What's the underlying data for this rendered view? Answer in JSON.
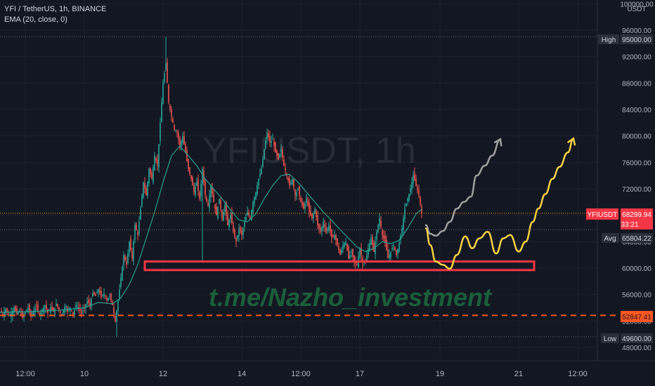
{
  "legend": {
    "symbol_line": "YFI / TetherUS, 1h, BINANCE",
    "indicator_line": "EMA (20, close, 0)"
  },
  "watermark": {
    "symbol": "YFIUSDT, 1h",
    "link": "t.me/Nazho_investment"
  },
  "colors": {
    "background": "#131722",
    "up": "#26a69a",
    "down": "#ef5350",
    "ema": "#2a9d8f",
    "zone": "#f23645",
    "projection_gray": "#9e9e9e",
    "projection_yellow": "#f5d046",
    "price_line": "#ff9800",
    "watermark_link": "#1b5e3b"
  },
  "tags": {
    "currency": "USDT",
    "high_label": "High",
    "high_value": "95000.00",
    "symbol_label": "YFIUSDT",
    "last_price": "68299.94",
    "countdown": "33:21",
    "avg_label": "Avg",
    "avg_value": "65804.22",
    "level_value": "52847.41",
    "low_label": "Low",
    "low_value": "49600.00"
  },
  "chart_data": {
    "type": "candlestick",
    "title": "YFI / TetherUS, 1h, BINANCE",
    "indicator": "EMA (20, close, 0)",
    "y_ticks": [
      "48000.00",
      "52000.00",
      "56000.00",
      "60000.00",
      "64000.00",
      "68000.00",
      "72000.00",
      "76000.00",
      "80000.00",
      "84000.00",
      "88000.00",
      "92000.00",
      "96000.00",
      "100000.00"
    ],
    "x_ticks": [
      "12:00",
      "10",
      "12",
      "14",
      "12:00",
      "17",
      "19",
      "21",
      "12:00"
    ],
    "ylim": [
      47000,
      100000
    ],
    "price_path": [
      [
        0,
        53500
      ],
      [
        4,
        53000
      ],
      [
        8,
        53800
      ],
      [
        12,
        52800
      ],
      [
        16,
        53200
      ],
      [
        20,
        54000
      ],
      [
        24,
        53000
      ],
      [
        28,
        53600
      ],
      [
        32,
        52500
      ],
      [
        36,
        53400
      ],
      [
        40,
        54000
      ],
      [
        44,
        52800
      ],
      [
        48,
        53500
      ],
      [
        52,
        54200
      ],
      [
        56,
        53000
      ],
      [
        60,
        53700
      ],
      [
        64,
        54400
      ],
      [
        68,
        53200
      ],
      [
        72,
        54000
      ],
      [
        76,
        53400
      ],
      [
        80,
        54600
      ],
      [
        84,
        53600
      ],
      [
        88,
        53000
      ],
      [
        92,
        54200
      ],
      [
        96,
        53400
      ],
      [
        100,
        54000
      ],
      [
        104,
        53000
      ],
      [
        108,
        54400
      ],
      [
        112,
        53800
      ],
      [
        116,
        53200
      ],
      [
        120,
        54000
      ],
      [
        124,
        55000
      ],
      [
        128,
        54400
      ],
      [
        132,
        56200
      ],
      [
        136,
        55800
      ],
      [
        140,
        56800
      ],
      [
        144,
        55600
      ],
      [
        148,
        56200
      ],
      [
        152,
        55200
      ],
      [
        156,
        55800
      ],
      [
        160,
        54400
      ],
      [
        164,
        52000
      ],
      [
        168,
        55000
      ],
      [
        172,
        58500
      ],
      [
        176,
        62000
      ],
      [
        180,
        60500
      ],
      [
        184,
        64000
      ],
      [
        188,
        61500
      ],
      [
        192,
        66500
      ],
      [
        196,
        65000
      ],
      [
        200,
        69000
      ],
      [
        204,
        73000
      ],
      [
        208,
        71000
      ],
      [
        212,
        75000
      ],
      [
        216,
        73500
      ],
      [
        220,
        77000
      ],
      [
        224,
        75500
      ],
      [
        228,
        82000
      ],
      [
        232,
        88000
      ],
      [
        236,
        91000
      ],
      [
        240,
        85000
      ],
      [
        244,
        83000
      ],
      [
        248,
        81000
      ],
      [
        252,
        80500
      ],
      [
        256,
        78500
      ],
      [
        260,
        80000
      ],
      [
        264,
        77500
      ],
      [
        268,
        75000
      ],
      [
        272,
        73500
      ],
      [
        276,
        71500
      ],
      [
        280,
        73000
      ],
      [
        284,
        70500
      ],
      [
        288,
        75000
      ],
      [
        292,
        71000
      ],
      [
        296,
        69500
      ],
      [
        300,
        72500
      ],
      [
        304,
        70000
      ],
      [
        308,
        68000
      ],
      [
        312,
        70500
      ],
      [
        316,
        67500
      ],
      [
        320,
        69500
      ],
      [
        324,
        66500
      ],
      [
        328,
        68000
      ],
      [
        332,
        65500
      ],
      [
        336,
        64000
      ],
      [
        340,
        66000
      ],
      [
        344,
        65000
      ],
      [
        348,
        67000
      ],
      [
        352,
        68500
      ],
      [
        356,
        67500
      ],
      [
        360,
        70000
      ],
      [
        364,
        71500
      ],
      [
        368,
        73500
      ],
      [
        372,
        75000
      ],
      [
        376,
        78000
      ],
      [
        380,
        80500
      ],
      [
        384,
        79000
      ],
      [
        388,
        79500
      ],
      [
        392,
        77500
      ],
      [
        396,
        76500
      ],
      [
        400,
        78000
      ],
      [
        404,
        75500
      ],
      [
        408,
        74000
      ],
      [
        412,
        72500
      ],
      [
        416,
        73500
      ],
      [
        420,
        71000
      ],
      [
        424,
        72000
      ],
      [
        428,
        70000
      ],
      [
        432,
        69000
      ],
      [
        436,
        70500
      ],
      [
        440,
        68500
      ],
      [
        444,
        67500
      ],
      [
        448,
        69000
      ],
      [
        452,
        66500
      ],
      [
        456,
        65500
      ],
      [
        460,
        67000
      ],
      [
        464,
        65500
      ],
      [
        468,
        66500
      ],
      [
        472,
        64500
      ],
      [
        476,
        65000
      ],
      [
        480,
        63500
      ],
      [
        484,
        62000
      ],
      [
        488,
        63500
      ],
      [
        492,
        64000
      ],
      [
        496,
        61500
      ],
      [
        500,
        62500
      ],
      [
        504,
        61000
      ],
      [
        508,
        60500
      ],
      [
        512,
        63000
      ],
      [
        516,
        61000
      ],
      [
        520,
        60800
      ],
      [
        524,
        63000
      ],
      [
        528,
        64500
      ],
      [
        532,
        62500
      ],
      [
        536,
        65500
      ],
      [
        540,
        67500
      ],
      [
        544,
        65000
      ],
      [
        548,
        64000
      ],
      [
        552,
        61500
      ],
      [
        556,
        62500
      ],
      [
        560,
        63500
      ],
      [
        564,
        62000
      ],
      [
        568,
        63800
      ],
      [
        572,
        66000
      ],
      [
        576,
        69000
      ],
      [
        580,
        70500
      ],
      [
        584,
        72000
      ],
      [
        588,
        74000
      ],
      [
        592,
        72500
      ],
      [
        596,
        71000
      ],
      [
        600,
        68300
      ]
    ],
    "ema_path": [
      [
        0,
        53300
      ],
      [
        40,
        53400
      ],
      [
        80,
        53600
      ],
      [
        120,
        54000
      ],
      [
        140,
        54800
      ],
      [
        160,
        54600
      ],
      [
        172,
        55500
      ],
      [
        184,
        57500
      ],
      [
        196,
        60500
      ],
      [
        208,
        64500
      ],
      [
        220,
        68500
      ],
      [
        232,
        73000
      ],
      [
        244,
        77000
      ],
      [
        256,
        78500
      ],
      [
        268,
        77000
      ],
      [
        280,
        75500
      ],
      [
        292,
        73500
      ],
      [
        304,
        72000
      ],
      [
        316,
        70500
      ],
      [
        328,
        68800
      ],
      [
        340,
        67300
      ],
      [
        352,
        67000
      ],
      [
        364,
        68200
      ],
      [
        376,
        70500
      ],
      [
        388,
        72500
      ],
      [
        400,
        74000
      ],
      [
        412,
        74200
      ],
      [
        424,
        73000
      ],
      [
        436,
        71500
      ],
      [
        448,
        70000
      ],
      [
        460,
        68500
      ],
      [
        472,
        67200
      ],
      [
        484,
        65800
      ],
      [
        496,
        64500
      ],
      [
        508,
        63200
      ],
      [
        520,
        62500
      ],
      [
        532,
        63000
      ],
      [
        544,
        64000
      ],
      [
        556,
        63700
      ],
      [
        568,
        64200
      ],
      [
        580,
        66000
      ],
      [
        592,
        68200
      ],
      [
        600,
        68900
      ]
    ],
    "support_zone": {
      "x_start": 206,
      "x_end": 760,
      "top": 61000,
      "bottom": 59700
    },
    "last_price": 68299.94,
    "avg": 65804.22,
    "high": 95000.0,
    "low": 49600.0,
    "level": 52847.41,
    "projection_gray": [
      [
        606,
        66500
      ],
      [
        612,
        65200
      ],
      [
        620,
        64900
      ],
      [
        630,
        65600
      ],
      [
        640,
        67000
      ],
      [
        650,
        69000
      ],
      [
        660,
        70000
      ],
      [
        670,
        70800
      ],
      [
        678,
        74000
      ],
      [
        690,
        75500
      ],
      [
        700,
        77000
      ],
      [
        712,
        79500
      ]
    ],
    "projection_yellow": [
      [
        606,
        66000
      ],
      [
        612,
        63500
      ],
      [
        620,
        61000
      ],
      [
        630,
        60500
      ],
      [
        640,
        59900
      ],
      [
        650,
        62000
      ],
      [
        662,
        64800
      ],
      [
        672,
        63000
      ],
      [
        682,
        64500
      ],
      [
        694,
        65500
      ],
      [
        706,
        62200
      ],
      [
        716,
        64500
      ],
      [
        726,
        65000
      ],
      [
        738,
        62500
      ],
      [
        748,
        64000
      ],
      [
        758,
        67000
      ],
      [
        766,
        69000
      ],
      [
        776,
        71200
      ],
      [
        786,
        73500
      ],
      [
        796,
        75300
      ],
      [
        808,
        77500
      ],
      [
        816,
        79600
      ]
    ]
  }
}
